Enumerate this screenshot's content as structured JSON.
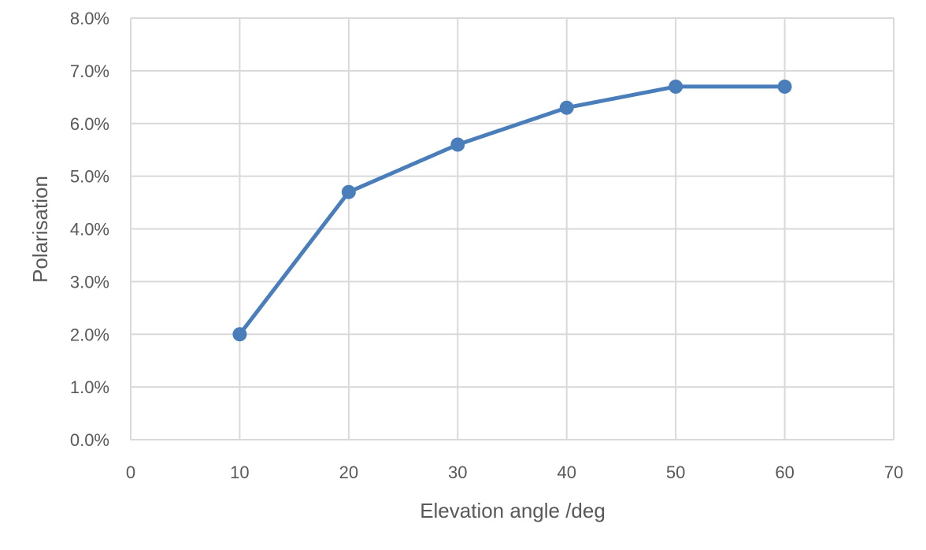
{
  "chart_data": {
    "type": "line",
    "title": "",
    "xlabel": "Elevation angle /deg",
    "ylabel": "Polarisation",
    "xlim": [
      0,
      70
    ],
    "ylim": [
      0,
      0.08
    ],
    "x_ticks": [
      0,
      10,
      20,
      30,
      40,
      50,
      60,
      70
    ],
    "y_ticks": [
      0,
      0.01,
      0.02,
      0.03,
      0.04,
      0.05,
      0.06,
      0.07,
      0.08
    ],
    "x_tick_labels": [
      "0",
      "10",
      "20",
      "30",
      "40",
      "50",
      "60",
      "70"
    ],
    "y_tick_labels": [
      "0.0%",
      "1.0%",
      "2.0%",
      "3.0%",
      "4.0%",
      "5.0%",
      "6.0%",
      "7.0%",
      "8.0%"
    ],
    "grid": true,
    "legend": "none",
    "series": [
      {
        "x": [
          10,
          20,
          30,
          40,
          50,
          60
        ],
        "y": [
          0.02,
          0.047,
          0.056,
          0.063,
          0.067,
          0.067
        ],
        "color": "#4a7ebb"
      }
    ]
  }
}
